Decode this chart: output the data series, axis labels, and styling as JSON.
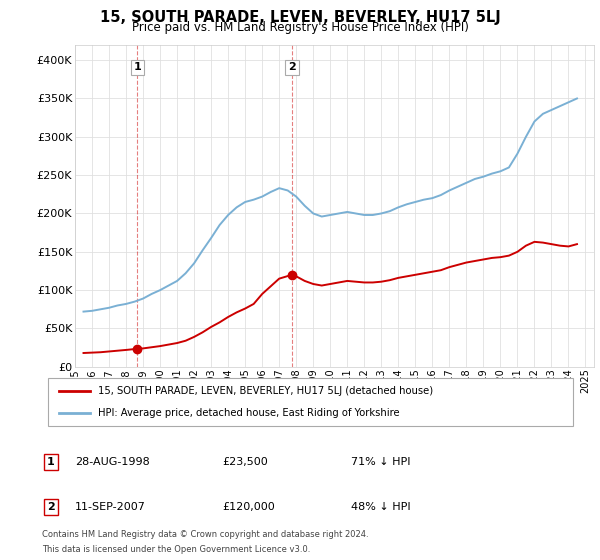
{
  "title": "15, SOUTH PARADE, LEVEN, BEVERLEY, HU17 5LJ",
  "subtitle": "Price paid vs. HM Land Registry's House Price Index (HPI)",
  "sale1_date": "28-AUG-1998",
  "sale1_price": 23500,
  "sale1_pct": "71% ↓ HPI",
  "sale2_date": "11-SEP-2007",
  "sale2_price": 120000,
  "sale2_pct": "48% ↓ HPI",
  "legend_house": "15, SOUTH PARADE, LEVEN, BEVERLEY, HU17 5LJ (detached house)",
  "legend_hpi": "HPI: Average price, detached house, East Riding of Yorkshire",
  "footer1": "Contains HM Land Registry data © Crown copyright and database right 2024.",
  "footer2": "This data is licensed under the Open Government Licence v3.0.",
  "house_color": "#cc0000",
  "hpi_color": "#7ab0d4",
  "ylim": [
    0,
    420000
  ],
  "yticks": [
    0,
    50000,
    100000,
    150000,
    200000,
    250000,
    300000,
    350000,
    400000
  ],
  "xlim_start": 1995.0,
  "xlim_end": 2025.5,
  "background_color": "#ffffff",
  "grid_color": "#e0e0e0",
  "hpi_years": [
    1995.5,
    1996.0,
    1996.5,
    1997.0,
    1997.5,
    1998.0,
    1998.5,
    1999.0,
    1999.5,
    2000.0,
    2000.5,
    2001.0,
    2001.5,
    2002.0,
    2002.5,
    2003.0,
    2003.5,
    2004.0,
    2004.5,
    2005.0,
    2005.5,
    2006.0,
    2006.5,
    2007.0,
    2007.5,
    2008.0,
    2008.5,
    2009.0,
    2009.5,
    2010.0,
    2010.5,
    2011.0,
    2011.5,
    2012.0,
    2012.5,
    2013.0,
    2013.5,
    2014.0,
    2014.5,
    2015.0,
    2015.5,
    2016.0,
    2016.5,
    2017.0,
    2017.5,
    2018.0,
    2018.5,
    2019.0,
    2019.5,
    2020.0,
    2020.5,
    2021.0,
    2021.5,
    2022.0,
    2022.5,
    2023.0,
    2023.5,
    2024.0,
    2024.5
  ],
  "hpi_values": [
    72000,
    73000,
    75000,
    77000,
    80000,
    82000,
    85000,
    89000,
    95000,
    100000,
    106000,
    112000,
    122000,
    135000,
    152000,
    168000,
    185000,
    198000,
    208000,
    215000,
    218000,
    222000,
    228000,
    233000,
    230000,
    222000,
    210000,
    200000,
    196000,
    198000,
    200000,
    202000,
    200000,
    198000,
    198000,
    200000,
    203000,
    208000,
    212000,
    215000,
    218000,
    220000,
    224000,
    230000,
    235000,
    240000,
    245000,
    248000,
    252000,
    255000,
    260000,
    278000,
    300000,
    320000,
    330000,
    335000,
    340000,
    345000,
    350000
  ],
  "house_years": [
    1995.5,
    1996.0,
    1996.5,
    1997.0,
    1997.5,
    1998.0,
    1998.67,
    1999.0,
    1999.5,
    2000.0,
    2000.5,
    2001.0,
    2001.5,
    2002.0,
    2002.5,
    2003.0,
    2003.5,
    2004.0,
    2004.5,
    2005.0,
    2005.5,
    2006.0,
    2006.5,
    2007.0,
    2007.75,
    2008.0,
    2008.5,
    2009.0,
    2009.5,
    2010.0,
    2010.5,
    2011.0,
    2011.5,
    2012.0,
    2012.5,
    2013.0,
    2013.5,
    2014.0,
    2014.5,
    2015.0,
    2015.5,
    2016.0,
    2016.5,
    2017.0,
    2017.5,
    2018.0,
    2018.5,
    2019.0,
    2019.5,
    2020.0,
    2020.5,
    2021.0,
    2021.5,
    2022.0,
    2022.5,
    2023.0,
    2023.5,
    2024.0,
    2024.5
  ],
  "house_values": [
    18000,
    18500,
    19000,
    20000,
    21000,
    22000,
    23500,
    24000,
    25500,
    27000,
    29000,
    31000,
    34000,
    39000,
    45000,
    52000,
    58000,
    65000,
    71000,
    76000,
    82000,
    95000,
    105000,
    115000,
    120000,
    118000,
    112000,
    108000,
    106000,
    108000,
    110000,
    112000,
    111000,
    110000,
    110000,
    111000,
    113000,
    116000,
    118000,
    120000,
    122000,
    124000,
    126000,
    130000,
    133000,
    136000,
    138000,
    140000,
    142000,
    143000,
    145000,
    150000,
    158000,
    163000,
    162000,
    160000,
    158000,
    157000,
    160000
  ],
  "sale1_x": 1998.67,
  "sale1_y": 23500,
  "sale2_x": 2007.75,
  "sale2_y": 120000
}
